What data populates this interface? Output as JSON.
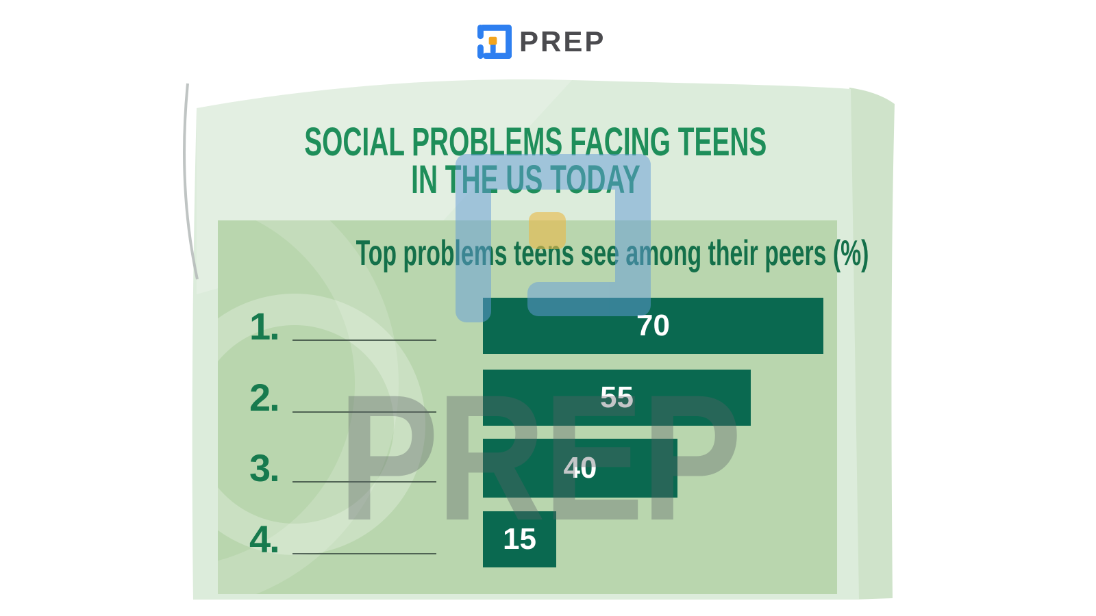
{
  "brand": {
    "wordmark": "PREP",
    "logo_colors": {
      "blue": "#2e7ff0",
      "orange": "#f2a41d",
      "text": "#4b4b4f"
    }
  },
  "poster": {
    "title_line1": "SOCIAL PROBLEMS FACING TEENS",
    "title_line2": "IN THE US TODAY",
    "subtitle": "Top problems teens see among their peers (%)"
  },
  "chart_data": {
    "type": "bar",
    "orientation": "horizontal",
    "title": "Top problems teens see among their peers (%)",
    "categories": [
      "1.",
      "2.",
      "3.",
      "4."
    ],
    "category_labels_blank": true,
    "values": [
      70,
      55,
      40,
      15
    ],
    "unit": "%",
    "grid": false,
    "legend": "none",
    "bar_color": "#0a6950",
    "value_label_color": "#ffffff",
    "number_label_color": "#177a4e"
  },
  "watermarks": {
    "center_text": "PREP",
    "logo_icon": "prep-logo-watermark"
  },
  "colors": {
    "page_background": "#ffffff",
    "paper": "#dcecdb",
    "back_page": "#cfe3ca",
    "panel": "#b9d6ae",
    "title_green": "#1e8e5a",
    "subtitle_green": "#14704a",
    "watermark_blue": "#639bd9",
    "watermark_yellow": "#e9b94a",
    "watermark_gray": "#5c6266"
  }
}
